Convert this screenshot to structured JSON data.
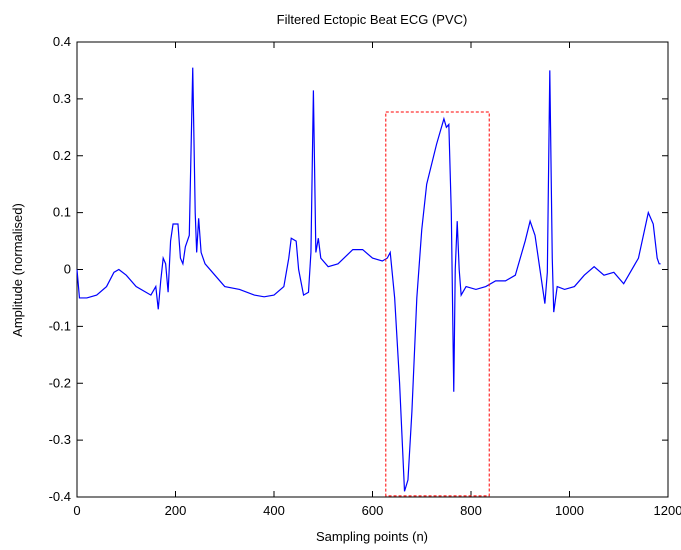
{
  "chart_data": {
    "type": "line",
    "title": "Filtered Ectopic Beat ECG (PVC)",
    "x_label": "Sampling points (n)",
    "y_label": "Amplitude (normalised)",
    "color": "#0000ff",
    "x": [
      0,
      5,
      20,
      40,
      60,
      75,
      85,
      100,
      120,
      140,
      150,
      160,
      165,
      170,
      175,
      180,
      185,
      190,
      195,
      205,
      210,
      215,
      220,
      228,
      235,
      240,
      243,
      247,
      252,
      260,
      280,
      300,
      330,
      360,
      380,
      400,
      420,
      430,
      435,
      445,
      450,
      460,
      470,
      475,
      480,
      485,
      490,
      495,
      510,
      530,
      560,
      580,
      600,
      620,
      630,
      636,
      645,
      655,
      665,
      672,
      680,
      690,
      700,
      710,
      730,
      745,
      750,
      755,
      760,
      765,
      768,
      772,
      776,
      780,
      790,
      810,
      830,
      850,
      870,
      890,
      910,
      920,
      930,
      940,
      950,
      955,
      960,
      965,
      968,
      975,
      990,
      1010,
      1030,
      1050,
      1070,
      1090,
      1110,
      1120,
      1140,
      1160,
      1170,
      1178,
      1182,
      1185
    ],
    "values": [
      0.0,
      -0.05,
      -0.05,
      -0.045,
      -0.03,
      -0.005,
      0.0,
      -0.01,
      -0.03,
      -0.04,
      -0.045,
      -0.03,
      -0.07,
      -0.02,
      0.02,
      0.01,
      -0.04,
      0.05,
      0.08,
      0.08,
      0.02,
      0.01,
      0.04,
      0.06,
      0.355,
      0.1,
      0.03,
      0.09,
      0.03,
      0.01,
      -0.01,
      -0.03,
      -0.035,
      -0.045,
      -0.048,
      -0.045,
      -0.03,
      0.02,
      0.055,
      0.05,
      0.0,
      -0.045,
      -0.04,
      0.03,
      0.315,
      0.03,
      0.055,
      0.02,
      0.005,
      0.01,
      0.035,
      0.035,
      0.02,
      0.015,
      0.02,
      0.03,
      -0.05,
      -0.2,
      -0.39,
      -0.37,
      -0.25,
      -0.05,
      0.07,
      0.15,
      0.22,
      0.265,
      0.25,
      0.255,
      0.1,
      -0.215,
      0.0,
      0.085,
      0.0,
      -0.045,
      -0.03,
      -0.035,
      -0.03,
      -0.02,
      -0.02,
      -0.01,
      0.05,
      0.085,
      0.06,
      0.0,
      -0.06,
      -0.005,
      0.35,
      0.02,
      -0.075,
      -0.03,
      -0.035,
      -0.03,
      -0.01,
      0.005,
      -0.01,
      -0.005,
      -0.025,
      -0.01,
      0.02,
      0.1,
      0.08,
      0.02,
      0.01,
      0.01
    ],
    "highlight": {
      "x": [
        627,
        837
      ],
      "y": [
        -0.398,
        0.277
      ],
      "color": "#ff0000"
    },
    "xlim": [
      0,
      1200
    ],
    "xticks": [
      0,
      200,
      400,
      600,
      800,
      1000,
      1200
    ],
    "ylim": [
      -0.4,
      0.4
    ],
    "yticks": [
      -0.4,
      -0.3,
      -0.2,
      -0.1,
      0,
      0.1,
      0.2,
      0.3,
      0.4
    ],
    "grid": false
  }
}
